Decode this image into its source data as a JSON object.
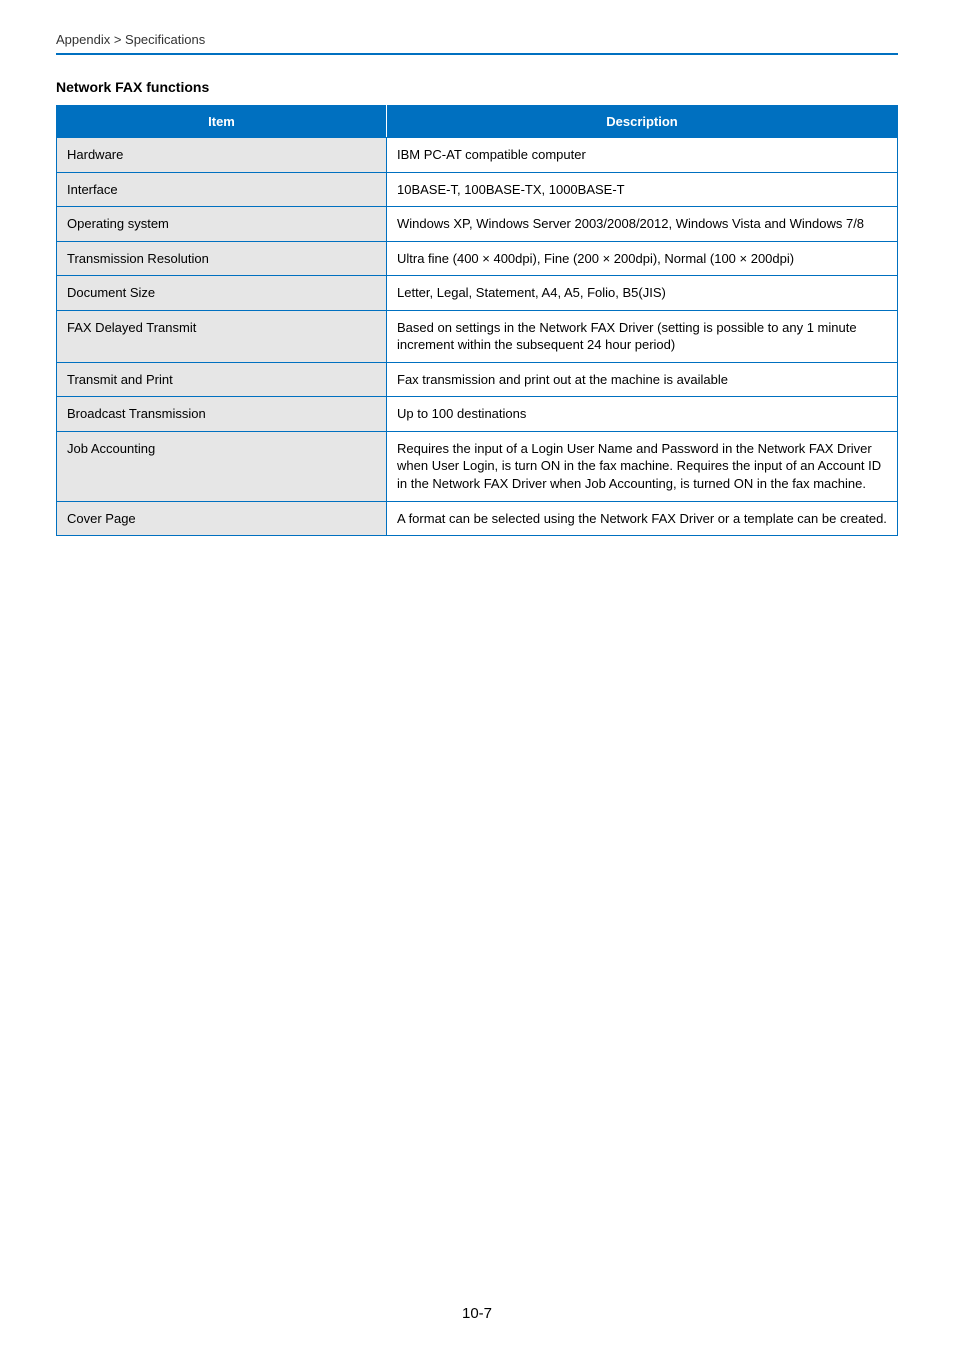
{
  "breadcrumb": "Appendix > Specifications",
  "sectionTitle": "Network FAX functions",
  "pageNumber": "10-7",
  "table": {
    "headers": {
      "item": "Item",
      "description": "Description"
    },
    "rows": [
      {
        "item": "Hardware",
        "description": "IBM PC-AT compatible computer"
      },
      {
        "item": "Interface",
        "description": "10BASE-T, 100BASE-TX, 1000BASE-T"
      },
      {
        "item": "Operating system",
        "description": "Windows XP, Windows Server 2003/2008/2012, Windows Vista and Windows 7/8"
      },
      {
        "item": "Transmission Resolution",
        "description": "Ultra fine (400 × 400dpi), Fine (200 × 200dpi), Normal (100 × 200dpi)"
      },
      {
        "item": "Document Size",
        "description": "Letter, Legal, Statement, A4, A5, Folio, B5(JIS)"
      },
      {
        "item": "FAX Delayed Transmit",
        "description": "Based on settings in the Network FAX Driver (setting is possible to any 1 minute increment within the subsequent 24 hour period)"
      },
      {
        "item": "Transmit and Print",
        "description": "Fax transmission and print out at the machine is available"
      },
      {
        "item": "Broadcast Transmission",
        "description": "Up to 100 destinations"
      },
      {
        "item": "Job Accounting",
        "description": "Requires the input of a Login User Name and Password in the Network FAX Driver when User Login, is turn ON in the fax machine.\nRequires the input of an Account ID in the Network FAX Driver when Job Accounting, is turned ON in the fax machine."
      },
      {
        "item": "Cover Page",
        "description": "A format can be selected using the Network FAX Driver or a template can be created."
      }
    ]
  }
}
